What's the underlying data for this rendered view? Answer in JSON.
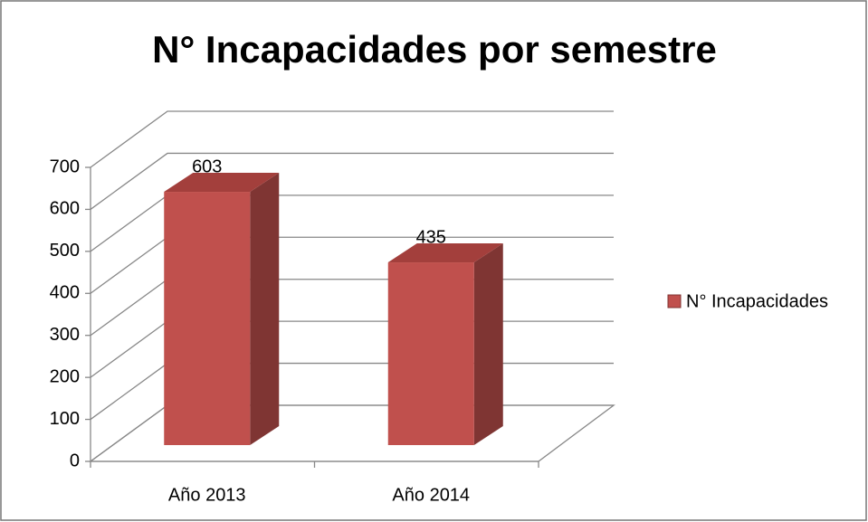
{
  "chart_data": {
    "type": "bar3d",
    "title": "N° Incapacidades por semestre",
    "categories": [
      "Año 2013",
      "Año 2014"
    ],
    "series": [
      {
        "name": "N° Incapacidades",
        "color": "#c0504d",
        "values": [
          603,
          435
        ]
      }
    ],
    "ylim": [
      0,
      700
    ],
    "yticks": [
      0,
      100,
      200,
      300,
      400,
      500,
      600,
      700
    ],
    "grid": true,
    "legend": "right"
  }
}
